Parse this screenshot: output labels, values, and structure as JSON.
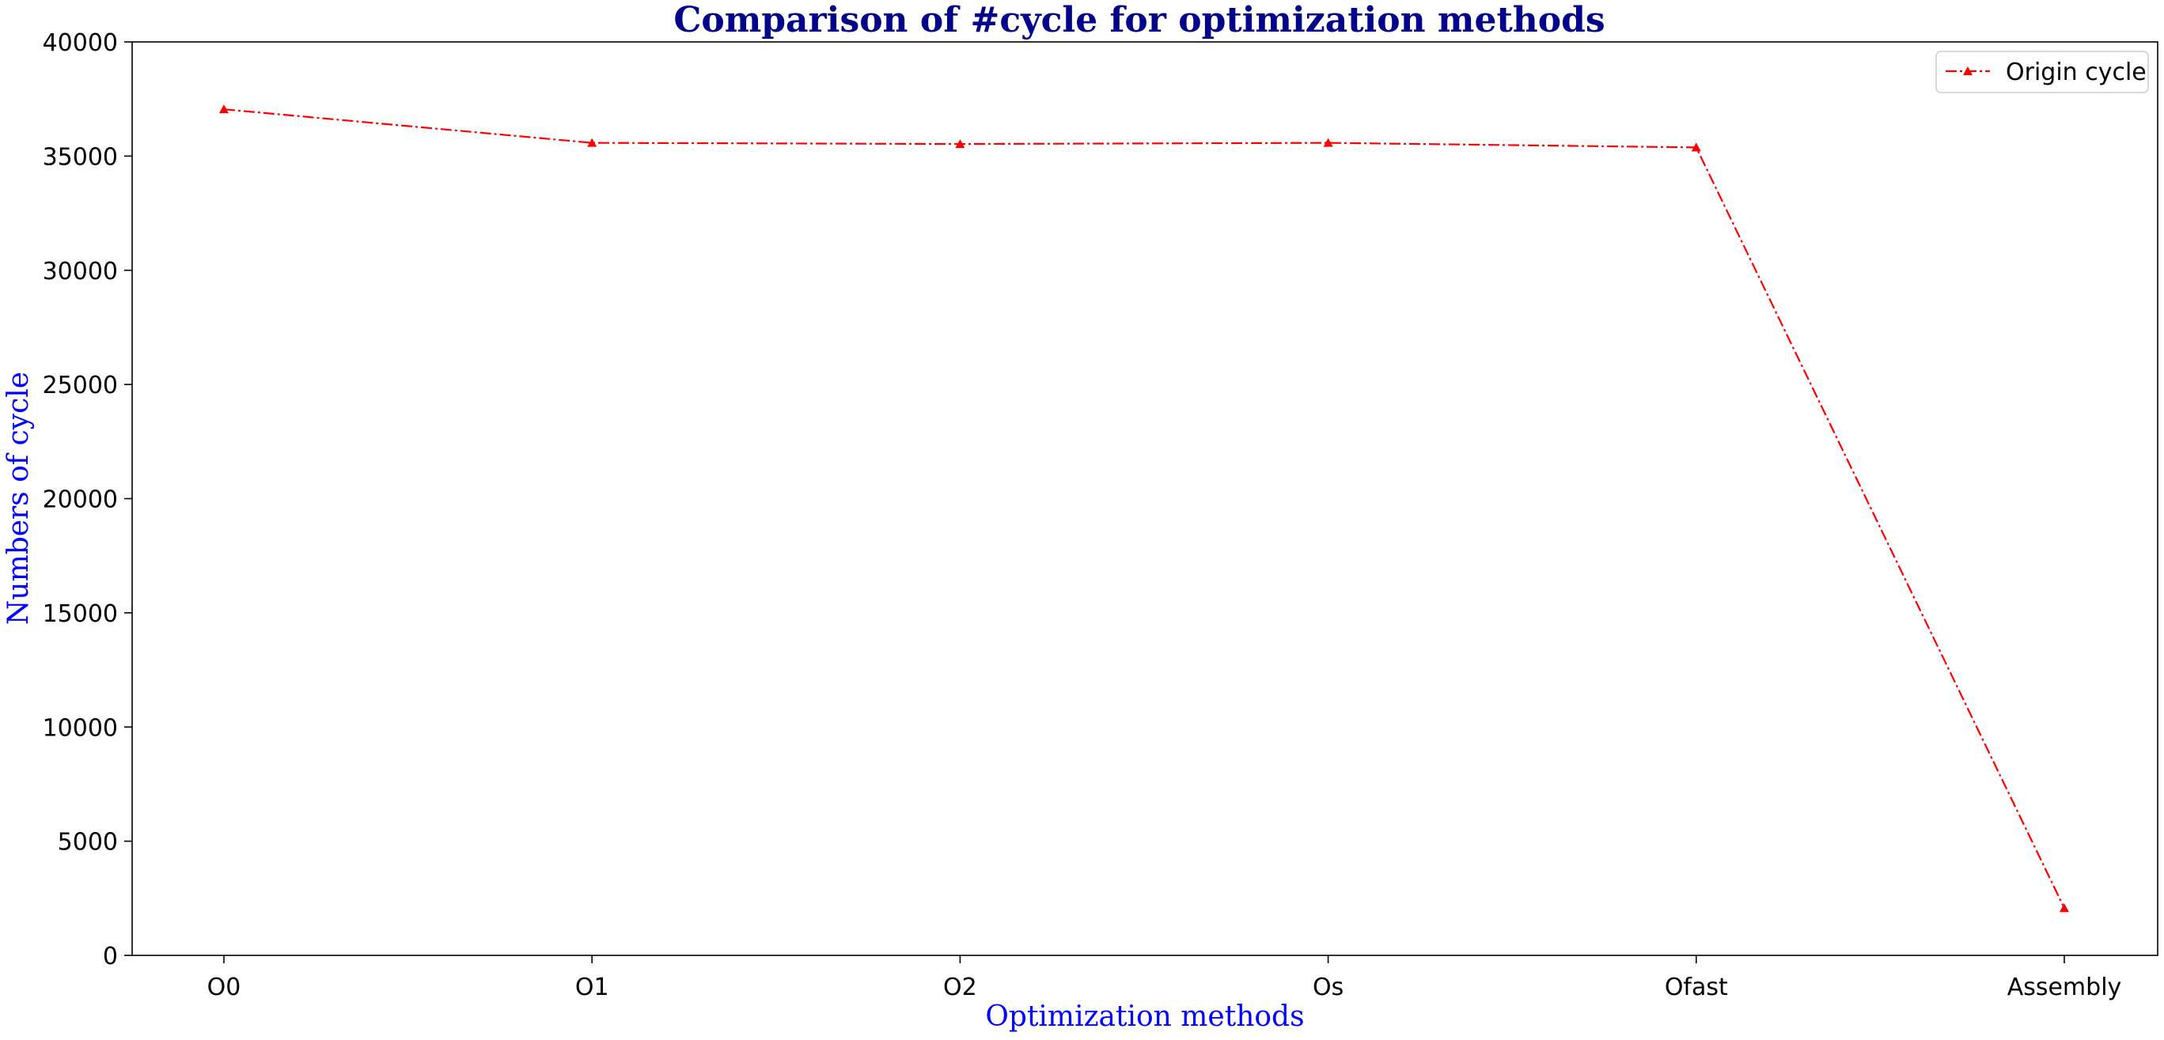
{
  "chart_data": {
    "type": "line",
    "title": "Comparison of #cycle for optimization methods",
    "xlabel": "Optimization methods",
    "ylabel": "Numbers of cycle",
    "categories": [
      "O0",
      "O1",
      "O2",
      "Os",
      "Ofast",
      "Assembly"
    ],
    "series": [
      {
        "name": "Origin cycle",
        "values": [
          37050,
          35580,
          35530,
          35580,
          35380,
          2070
        ],
        "color": "#ff0000",
        "line_style": "dash-dot",
        "marker": "triangle"
      }
    ],
    "ylim": [
      0,
      40000
    ],
    "yticks": [
      "0",
      "5000",
      "10000",
      "15000",
      "20000",
      "25000",
      "30000",
      "35000",
      "40000"
    ],
    "grid": false,
    "legend_position": "top-right",
    "colors": {
      "title": "#00008b",
      "axis_label": "#0000ff",
      "series": "#ff0000"
    }
  }
}
